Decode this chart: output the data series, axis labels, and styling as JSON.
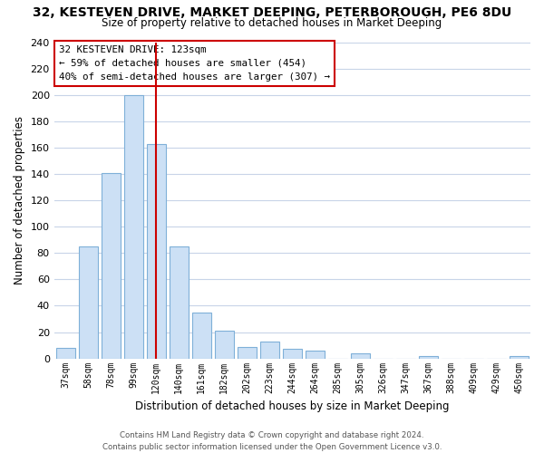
{
  "title": "32, KESTEVEN DRIVE, MARKET DEEPING, PETERBOROUGH, PE6 8DU",
  "subtitle": "Size of property relative to detached houses in Market Deeping",
  "xlabel": "Distribution of detached houses by size in Market Deeping",
  "ylabel": "Number of detached properties",
  "bar_labels": [
    "37sqm",
    "58sqm",
    "78sqm",
    "99sqm",
    "120sqm",
    "140sqm",
    "161sqm",
    "182sqm",
    "202sqm",
    "223sqm",
    "244sqm",
    "264sqm",
    "285sqm",
    "305sqm",
    "326sqm",
    "347sqm",
    "367sqm",
    "388sqm",
    "409sqm",
    "429sqm",
    "450sqm"
  ],
  "bar_values": [
    8,
    85,
    141,
    200,
    163,
    85,
    35,
    21,
    9,
    13,
    7,
    6,
    0,
    4,
    0,
    0,
    2,
    0,
    0,
    0,
    2
  ],
  "bar_color": "#cce0f5",
  "bar_edge_color": "#7fb0d8",
  "vline_x": 4,
  "vline_color": "#cc0000",
  "ylim": [
    0,
    240
  ],
  "yticks": [
    0,
    20,
    40,
    60,
    80,
    100,
    120,
    140,
    160,
    180,
    200,
    220,
    240
  ],
  "annotation_title": "32 KESTEVEN DRIVE: 123sqm",
  "annotation_line1": "← 59% of detached houses are smaller (454)",
  "annotation_line2": "40% of semi-detached houses are larger (307) →",
  "footer_line1": "Contains HM Land Registry data © Crown copyright and database right 2024.",
  "footer_line2": "Contains public sector information licensed under the Open Government Licence v3.0.",
  "background_color": "#ffffff",
  "grid_color": "#c8d4e8"
}
